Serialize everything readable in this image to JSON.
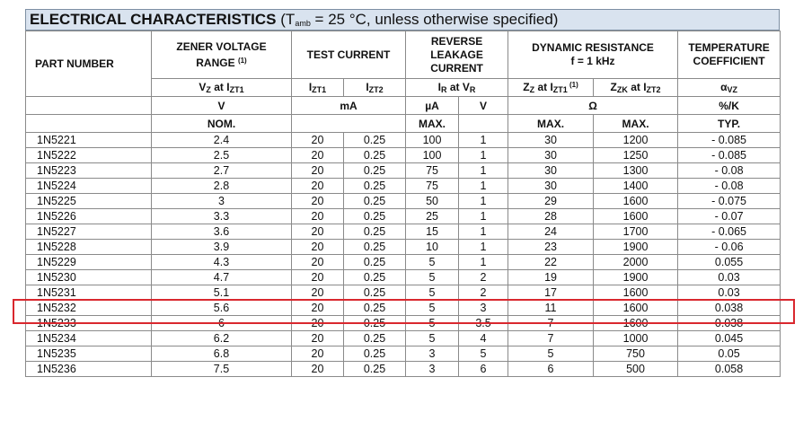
{
  "title": {
    "main": "ELECTRICAL CHARACTERISTICS",
    "cond_open": " (T",
    "cond_sub": "amb",
    "cond_rest": " = 25 °C, unless otherwise specified)"
  },
  "header": {
    "part_number": "PART NUMBER",
    "zener_voltage_line1": "ZENER VOLTAGE",
    "zener_voltage_line2": "RANGE ",
    "zener_voltage_note": "(1)",
    "test_current": "TEST CURRENT",
    "reverse_leakage_line1": "REVERSE",
    "reverse_leakage_line2": "LEAKAGE",
    "reverse_leakage_line3": "CURRENT",
    "dynamic_resistance_line1": "DYNAMIC RESISTANCE",
    "dynamic_resistance_line2": "f = 1 kHz",
    "temp_coeff_line1": "TEMPERATURE",
    "temp_coeff_line2": "COEFFICIENT",
    "sym_vz": "V",
    "sym_vz_sub": "Z",
    "sym_vz_at": " at I",
    "sym_vz_at_sub": "ZT1",
    "sym_izt1": "I",
    "sym_izt1_sub": "ZT1",
    "sym_izt2": "I",
    "sym_izt2_sub": "ZT2",
    "sym_ir": "I",
    "sym_ir_sub": "R",
    "sym_ir_at": " at V",
    "sym_ir_at_sub": "R",
    "sym_zz": "Z",
    "sym_zz_sub": "Z",
    "sym_zz_at": " at I",
    "sym_zz_at_sub": "ZT1",
    "sym_zz_note": " (1)",
    "sym_zzk": "Z",
    "sym_zzk_sub": "ZK",
    "sym_zzk_at": " at I",
    "sym_zzk_at_sub": "ZT2",
    "sym_alpha": "α",
    "sym_alpha_sub": "VZ",
    "unit_v": "V",
    "unit_ma": "mA",
    "unit_ua": "µA",
    "unit_v2": "V",
    "unit_ohm": "Ω",
    "unit_pct": "%/K",
    "nom": "NOM.",
    "max1": "MAX.",
    "max2": "MAX.",
    "max3": "MAX.",
    "typ": "TYP."
  },
  "rows": [
    [
      "1N5221",
      "2.4",
      "20",
      "0.25",
      "100",
      "1",
      "30",
      "1200",
      "- 0.085"
    ],
    [
      "1N5222",
      "2.5",
      "20",
      "0.25",
      "100",
      "1",
      "30",
      "1250",
      "- 0.085"
    ],
    [
      "1N5223",
      "2.7",
      "20",
      "0.25",
      "75",
      "1",
      "30",
      "1300",
      "- 0.08"
    ],
    [
      "1N5224",
      "2.8",
      "20",
      "0.25",
      "75",
      "1",
      "30",
      "1400",
      "- 0.08"
    ],
    [
      "1N5225",
      "3",
      "20",
      "0.25",
      "50",
      "1",
      "29",
      "1600",
      "- 0.075"
    ],
    [
      "1N5226",
      "3.3",
      "20",
      "0.25",
      "25",
      "1",
      "28",
      "1600",
      "- 0.07"
    ],
    [
      "1N5227",
      "3.6",
      "20",
      "0.25",
      "15",
      "1",
      "24",
      "1700",
      "- 0.065"
    ],
    [
      "1N5228",
      "3.9",
      "20",
      "0.25",
      "10",
      "1",
      "23",
      "1900",
      "- 0.06"
    ],
    [
      "1N5229",
      "4.3",
      "20",
      "0.25",
      "5",
      "1",
      "22",
      "2000",
      "0.055"
    ],
    [
      "1N5230",
      "4.7",
      "20",
      "0.25",
      "5",
      "2",
      "19",
      "1900",
      "0.03"
    ],
    [
      "1N5231",
      "5.1",
      "20",
      "0.25",
      "5",
      "2",
      "17",
      "1600",
      "0.03"
    ],
    [
      "1N5232",
      "5.6",
      "20",
      "0.25",
      "5",
      "3",
      "11",
      "1600",
      "0.038"
    ],
    [
      "1N5233",
      "6",
      "20",
      "0.25",
      "5",
      "3.5",
      "7",
      "1600",
      "0.038"
    ],
    [
      "1N5234",
      "6.2",
      "20",
      "0.25",
      "5",
      "4",
      "7",
      "1000",
      "0.045"
    ],
    [
      "1N5235",
      "6.8",
      "20",
      "0.25",
      "3",
      "5",
      "5",
      "750",
      "0.05"
    ],
    [
      "1N5236",
      "7.5",
      "20",
      "0.25",
      "3",
      "6",
      "6",
      "500",
      "0.058"
    ]
  ],
  "highlight": {
    "row_index": 10,
    "color": "#d9272e"
  }
}
